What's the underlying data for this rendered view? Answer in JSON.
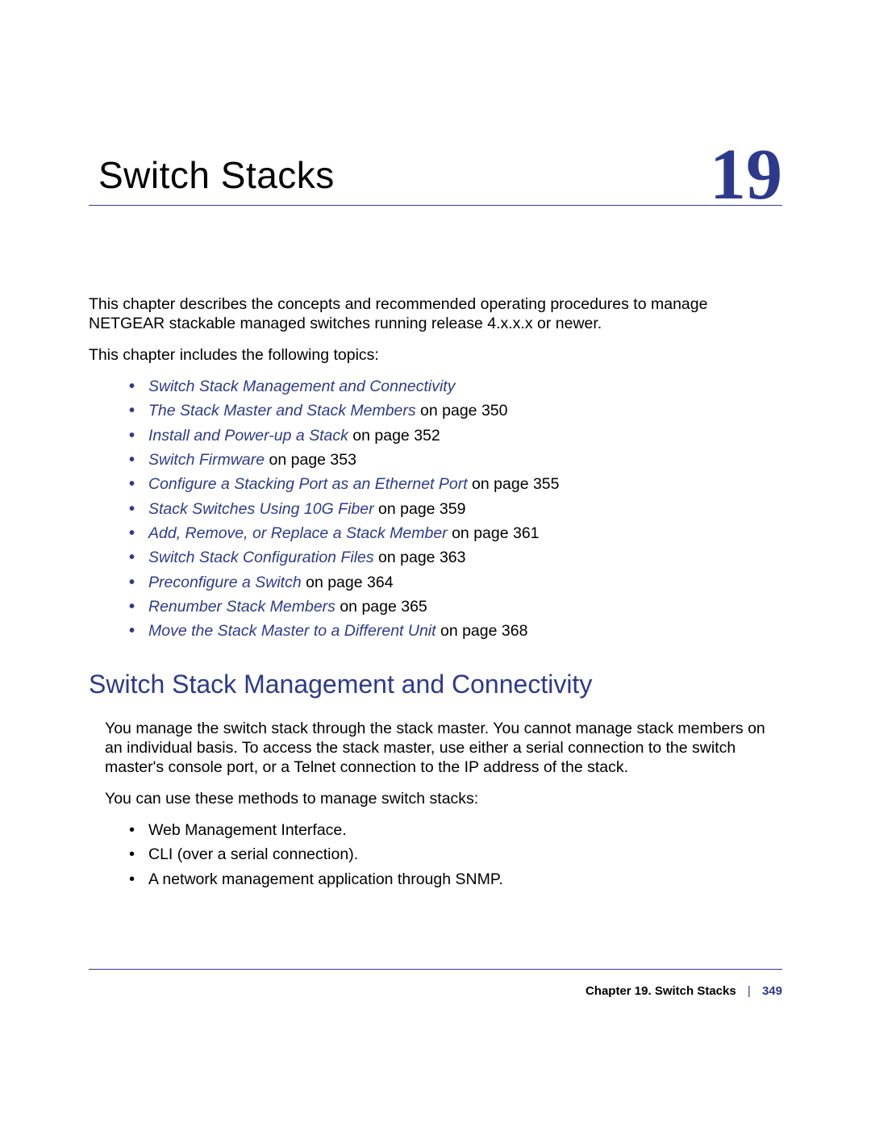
{
  "colors": {
    "brand": "#2d3a8c",
    "text": "#000000",
    "background": "#ffffff"
  },
  "chapter": {
    "title": "Switch Stacks",
    "number": "19"
  },
  "intro": {
    "p1": "This chapter describes the concepts and recommended operating procedures to manage NETGEAR stackable managed switches running release 4.x.x.x or newer.",
    "p2": "This chapter includes the following topics:"
  },
  "topics": [
    {
      "text": "Switch Stack Management and Connectivity",
      "page": ""
    },
    {
      "text": "The Stack Master and Stack Members",
      "page": " on page 350"
    },
    {
      "text": "Install and Power-up a Stack",
      "page": " on page 352"
    },
    {
      "text": "Switch Firmware",
      "page": " on page 353"
    },
    {
      "text": "Configure a Stacking Port as an Ethernet Port",
      "page": " on page 355"
    },
    {
      "text": "Stack Switches Using 10G Fiber",
      "page": " on page 359"
    },
    {
      "text": "Add, Remove, or Replace a Stack Member",
      "page": " on page 361"
    },
    {
      "text": "Switch Stack Configuration Files",
      "page": " on page 363"
    },
    {
      "text": "Preconfigure a Switch",
      "page": " on page 364"
    },
    {
      "text": "Renumber Stack Members",
      "page": " on page 365"
    },
    {
      "text": "Move the Stack Master to a Different Unit ",
      "page": " on page 368"
    }
  ],
  "section": {
    "heading": "Switch Stack Management and Connectivity",
    "p1": "You manage the switch stack through the stack master. You cannot manage stack members on an individual basis. To access the stack master, use either a serial connection to the switch master's console port, or a Telnet connection to the IP address of the stack.",
    "p2": "You can use these methods to manage switch stacks:",
    "methods": [
      "Web Management Interface.",
      "CLI (over a serial connection).",
      "A network management application through SNMP."
    ]
  },
  "footer": {
    "chapter_label": "Chapter 19.  Switch Stacks",
    "page_number": "349"
  }
}
